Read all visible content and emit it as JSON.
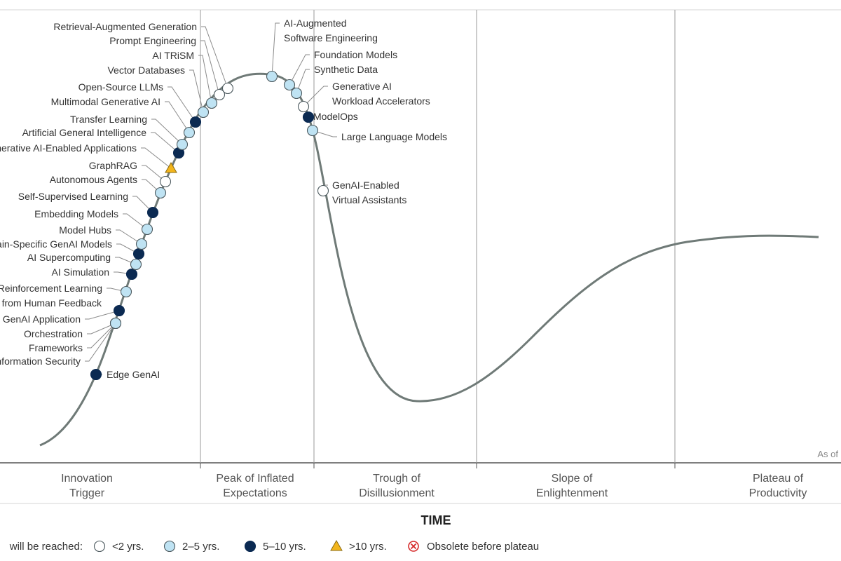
{
  "chart_data": {
    "type": "scatter",
    "x_axis_title": "TIME",
    "as_of_label": "As of",
    "phases": [
      {
        "name": "innovation-trigger",
        "lines": [
          "Innovation",
          "Trigger"
        ]
      },
      {
        "name": "peak",
        "lines": [
          "Peak of Inflated",
          "Expectations"
        ]
      },
      {
        "name": "trough",
        "lines": [
          "Trough of",
          "Disillusionment"
        ]
      },
      {
        "name": "slope",
        "lines": [
          "Slope of",
          "Enlightenment"
        ]
      },
      {
        "name": "plateau",
        "lines": [
          "Plateau of",
          "Productivity"
        ]
      }
    ],
    "legend": {
      "prefix": "will be reached:",
      "items": [
        {
          "key": "lt2",
          "label": "<2 yrs."
        },
        {
          "key": "2to5",
          "label": "2–5 yrs."
        },
        {
          "key": "5to10",
          "label": "5–10 yrs."
        },
        {
          "key": "gt10",
          "label": ">10 yrs."
        },
        {
          "key": "obsolete",
          "label": "Obsolete before plateau"
        }
      ]
    },
    "colors": {
      "lt2": "#ffffff",
      "2to5": "#bfe3f3",
      "5to10": "#0b2a52",
      "gt10": "#f2b51c",
      "obsolete": "#d62b2b",
      "curve": "#6f7a77"
    },
    "technologies": [
      {
        "name": "Edge GenAI",
        "category": "5to10"
      },
      {
        "name": "Information Security",
        "category": "2to5"
      },
      {
        "name": "Frameworks",
        "category": "2to5"
      },
      {
        "name": "Orchestration",
        "category": "2to5"
      },
      {
        "name": "GenAI Application",
        "category": "5to10"
      },
      {
        "name": "Reinforcement Learning from Human Feedback",
        "lines": [
          "Reinforcement Learning",
          "from Human Feedback"
        ],
        "category": "2to5"
      },
      {
        "name": "AI Simulation",
        "category": "5to10"
      },
      {
        "name": "AI Supercomputing",
        "category": "2to5"
      },
      {
        "name": "Domain-Specific GenAI Models",
        "category": "5to10"
      },
      {
        "name": "Model Hubs",
        "category": "2to5"
      },
      {
        "name": "Embedding Models",
        "category": "2to5"
      },
      {
        "name": "Self-Supervised Learning",
        "category": "5to10"
      },
      {
        "name": "Autonomous Agents",
        "category": "2to5"
      },
      {
        "name": "GraphRAG",
        "category": "lt2"
      },
      {
        "name": "Generative AI-Enabled Applications",
        "category": "gt10"
      },
      {
        "name": "Artificial General Intelligence",
        "category": "5to10"
      },
      {
        "name": "Transfer Learning",
        "category": "2to5"
      },
      {
        "name": "Multimodal Generative AI",
        "category": "2to5"
      },
      {
        "name": "Open-Source LLMs",
        "category": "5to10"
      },
      {
        "name": "Vector Databases",
        "category": "2to5"
      },
      {
        "name": "AI TRiSM",
        "category": "2to5"
      },
      {
        "name": "Prompt Engineering",
        "category": "lt2"
      },
      {
        "name": "Retrieval-Augmented Generation",
        "category": "lt2"
      },
      {
        "name": "AI-Augmented Software Engineering",
        "lines": [
          "AI-Augmented",
          "Software Engineering"
        ],
        "category": "2to5"
      },
      {
        "name": "Foundation Models",
        "category": "2to5"
      },
      {
        "name": "Synthetic Data",
        "category": "2to5"
      },
      {
        "name": "Generative AI Workload Accelerators",
        "lines": [
          "Generative AI",
          "Workload Accelerators"
        ],
        "category": "lt2"
      },
      {
        "name": "ModelOps",
        "category": "5to10"
      },
      {
        "name": "Large Language Models",
        "category": "2to5"
      },
      {
        "name": "GenAI-Enabled Virtual Assistants",
        "lines": [
          "GenAI-Enabled",
          "Virtual Assistants"
        ],
        "category": "lt2"
      }
    ]
  }
}
